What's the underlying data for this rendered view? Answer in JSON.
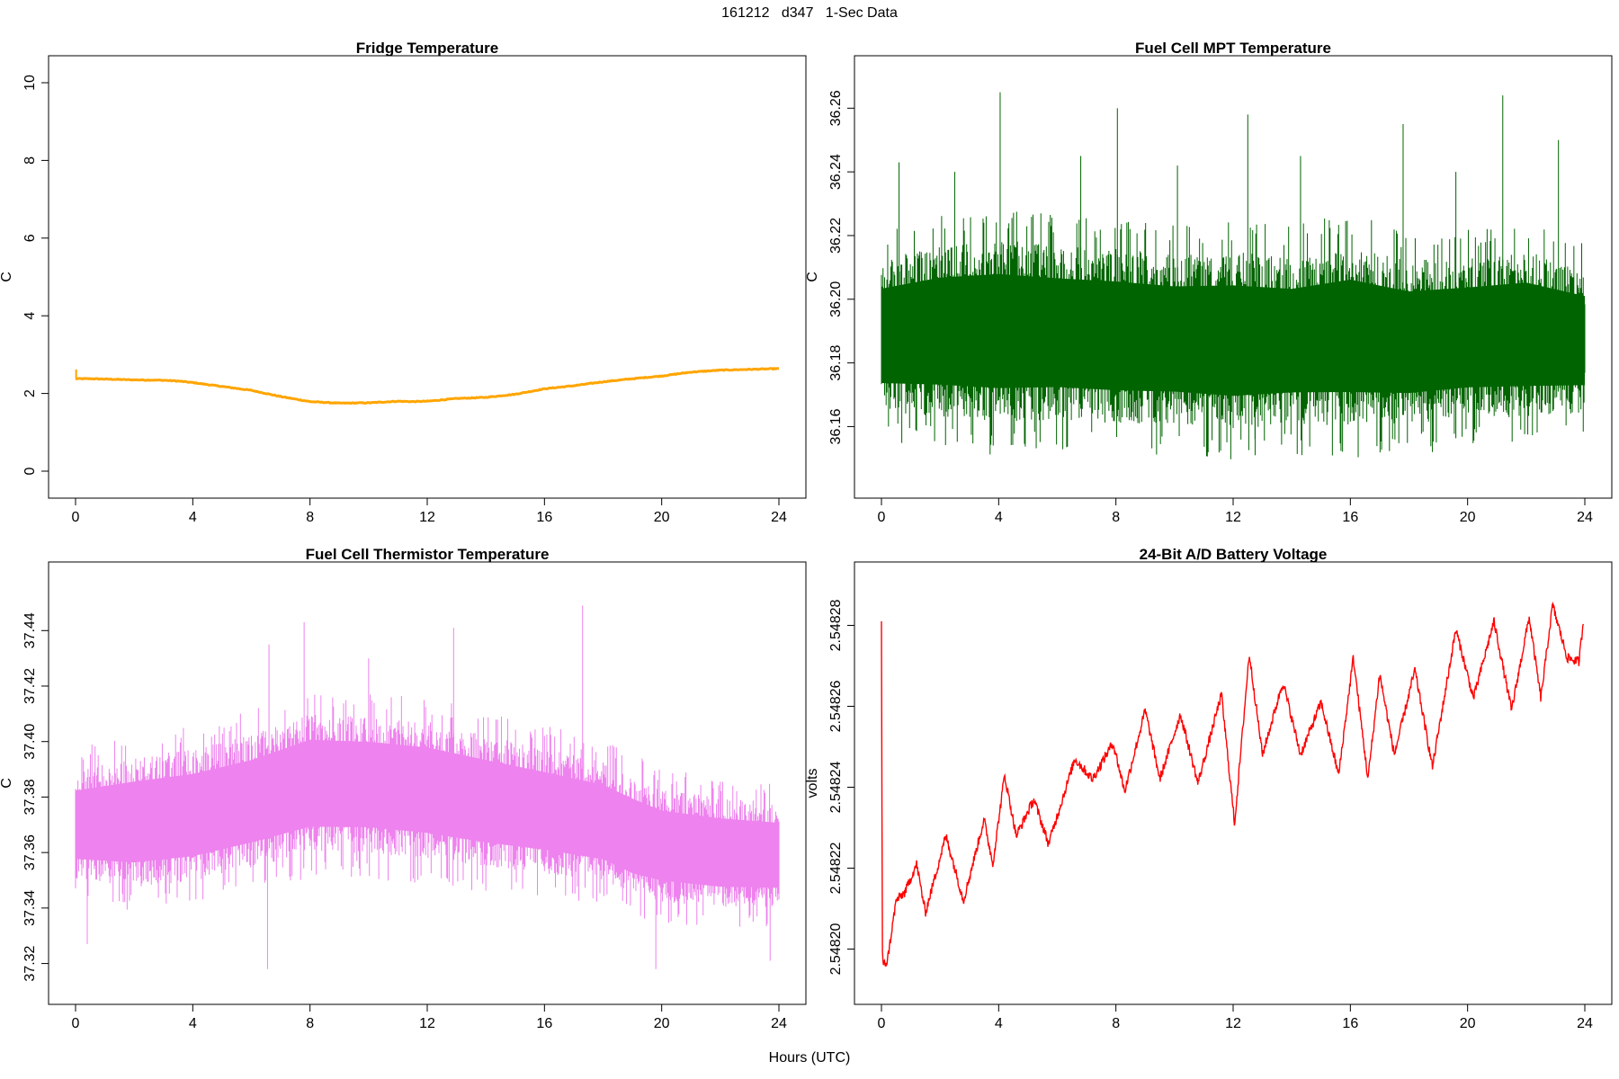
{
  "figure": {
    "title": "161212   d347   1-Sec Data",
    "xlabel": "Hours (UTC)"
  },
  "chart_data": [
    {
      "type": "line",
      "title": "Fridge Temperature",
      "xlabel": "",
      "ylabel": "C",
      "xlim": [
        0,
        24
      ],
      "ylim": [
        0,
        10
      ],
      "xticks": [
        0,
        4,
        8,
        12,
        16,
        20,
        24
      ],
      "yticks": [
        0,
        2,
        4,
        6,
        8,
        10
      ],
      "ytick_labels": [
        "0",
        "2",
        "4",
        "6",
        "8",
        "10"
      ],
      "color": "#FFA500",
      "grid": false,
      "series": [
        {
          "x": [
            0,
            0.5,
            1,
            2,
            3,
            3.5,
            4,
            5,
            6,
            7,
            8,
            9,
            10,
            11,
            11.5,
            12,
            13,
            14,
            15,
            16,
            17,
            18,
            19,
            20,
            21,
            22,
            23,
            24
          ],
          "values": [
            2.38,
            2.38,
            2.37,
            2.35,
            2.34,
            2.32,
            2.28,
            2.18,
            2.08,
            1.92,
            1.79,
            1.75,
            1.76,
            1.8,
            1.79,
            1.8,
            1.87,
            1.9,
            1.98,
            2.12,
            2.2,
            2.3,
            2.38,
            2.45,
            2.55,
            2.6,
            2.62,
            2.64
          ]
        }
      ]
    },
    {
      "type": "line",
      "title": "Fuel Cell MPT Temperature",
      "xlabel": "",
      "ylabel": "C",
      "xlim": [
        0,
        24
      ],
      "ylim": [
        36.146,
        36.268
      ],
      "xticks": [
        0,
        4,
        8,
        12,
        16,
        20,
        24
      ],
      "yticks": [
        36.16,
        36.18,
        36.2,
        36.22,
        36.24,
        36.26
      ],
      "ytick_labels": [
        "36.16",
        "36.18",
        "36.20",
        "36.22",
        "36.24",
        "36.26"
      ],
      "color": "#006400",
      "grid": false,
      "series": [
        {
          "x": [
            0,
            2,
            4,
            6,
            8,
            10,
            12,
            14,
            16,
            18,
            20,
            22,
            24
          ],
          "min": [
            36.162,
            36.16,
            36.158,
            36.159,
            36.158,
            36.158,
            36.156,
            36.158,
            36.157,
            36.158,
            36.16,
            36.16,
            36.162
          ],
          "max": [
            36.215,
            36.22,
            36.222,
            36.22,
            36.219,
            36.217,
            36.218,
            36.216,
            36.22,
            36.215,
            36.216,
            36.218,
            36.212
          ],
          "spikes": [
            {
              "x": 4.05,
              "y": 36.265
            },
            {
              "x": 8.05,
              "y": 36.26
            },
            {
              "x": 21.2,
              "y": 36.264
            },
            {
              "x": 12.5,
              "y": 36.258
            },
            {
              "x": 17.8,
              "y": 36.255
            },
            {
              "x": 23.1,
              "y": 36.25
            },
            {
              "x": 0.6,
              "y": 36.243
            },
            {
              "x": 6.8,
              "y": 36.245
            },
            {
              "x": 14.3,
              "y": 36.245
            },
            {
              "x": 2.5,
              "y": 36.24
            },
            {
              "x": 10.1,
              "y": 36.242
            },
            {
              "x": 19.6,
              "y": 36.24
            },
            {
              "x": 12.75,
              "y": 36.151
            },
            {
              "x": 18.8,
              "y": 36.152
            }
          ]
        }
      ]
    },
    {
      "type": "line",
      "title": "Fuel Cell Thermistor Temperature",
      "xlabel": "",
      "ylabel": "C",
      "xlim": [
        0,
        24
      ],
      "ylim": [
        37.315,
        37.455
      ],
      "xticks": [
        0,
        4,
        8,
        12,
        16,
        20,
        24
      ],
      "yticks": [
        37.32,
        37.34,
        37.36,
        37.38,
        37.4,
        37.42,
        37.44
      ],
      "ytick_labels": [
        "37.32",
        "37.34",
        "37.36",
        "37.38",
        "37.40",
        "37.42",
        "37.44"
      ],
      "color": "#EE82EE",
      "grid": false,
      "series": [
        {
          "x": [
            0,
            2,
            4,
            6,
            8,
            10,
            12,
            14,
            16,
            18,
            19,
            20,
            22,
            24
          ],
          "min": [
            37.348,
            37.345,
            37.347,
            37.352,
            37.357,
            37.357,
            37.355,
            37.352,
            37.35,
            37.347,
            37.342,
            37.34,
            37.338,
            37.338
          ],
          "max": [
            37.392,
            37.397,
            37.4,
            37.405,
            37.413,
            37.412,
            37.41,
            37.405,
            37.4,
            37.395,
            37.39,
            37.385,
            37.382,
            37.38
          ],
          "spikes": [
            {
              "x": 17.3,
              "y": 37.449
            },
            {
              "x": 7.8,
              "y": 37.443
            },
            {
              "x": 12.9,
              "y": 37.441
            },
            {
              "x": 6.6,
              "y": 37.435
            },
            {
              "x": 10.0,
              "y": 37.43
            },
            {
              "x": 6.55,
              "y": 37.318
            },
            {
              "x": 19.8,
              "y": 37.318
            },
            {
              "x": 0.4,
              "y": 37.327
            },
            {
              "x": 23.7,
              "y": 37.321
            }
          ]
        }
      ]
    },
    {
      "type": "line",
      "title": "24-Bit A/D Battery Voltage",
      "xlabel": "",
      "ylabel": "volts",
      "xlim": [
        0,
        24
      ],
      "ylim": [
        2.548193,
        2.548289
      ],
      "xticks": [
        0,
        4,
        8,
        12,
        16,
        20,
        24
      ],
      "yticks": [
        2.5482,
        2.54822,
        2.54824,
        2.54826,
        2.54828
      ],
      "ytick_labels": [
        "2.54820",
        "2.54822",
        "2.54824",
        "2.54826",
        "2.54828"
      ],
      "color": "#FF0000",
      "grid": false,
      "series": [
        {
          "x": [
            0,
            0.03,
            0.06,
            0.2,
            0.5,
            0.8,
            1.2,
            1.5,
            2.2,
            2.8,
            3.5,
            3.8,
            4.2,
            4.6,
            5.2,
            5.7,
            6.6,
            7.2,
            7.9,
            8.3,
            9.0,
            9.5,
            10.2,
            10.8,
            11.6,
            12.05,
            12.55,
            13.0,
            13.7,
            14.3,
            15.0,
            15.6,
            16.1,
            16.6,
            17.0,
            17.5,
            18.2,
            18.8,
            19.6,
            20.2,
            20.9,
            21.5,
            22.1,
            22.5,
            22.9,
            23.4,
            23.8,
            23.95
          ],
          "values": [
            2.548281,
            2.5482,
            2.548196,
            2.548197,
            2.548212,
            2.548214,
            2.548221,
            2.548209,
            2.548228,
            2.548212,
            2.548232,
            2.548221,
            2.548243,
            2.548228,
            2.548237,
            2.548226,
            2.548247,
            2.548242,
            2.548251,
            2.548239,
            2.548259,
            2.548242,
            2.548258,
            2.548241,
            2.548263,
            2.548231,
            2.548273,
            2.548248,
            2.548266,
            2.548248,
            2.548261,
            2.548243,
            2.548272,
            2.548242,
            2.548268,
            2.548248,
            2.548269,
            2.548245,
            2.548279,
            2.548262,
            2.548281,
            2.548259,
            2.548282,
            2.548262,
            2.548285,
            2.548272,
            2.548271,
            2.548281
          ]
        }
      ]
    }
  ]
}
